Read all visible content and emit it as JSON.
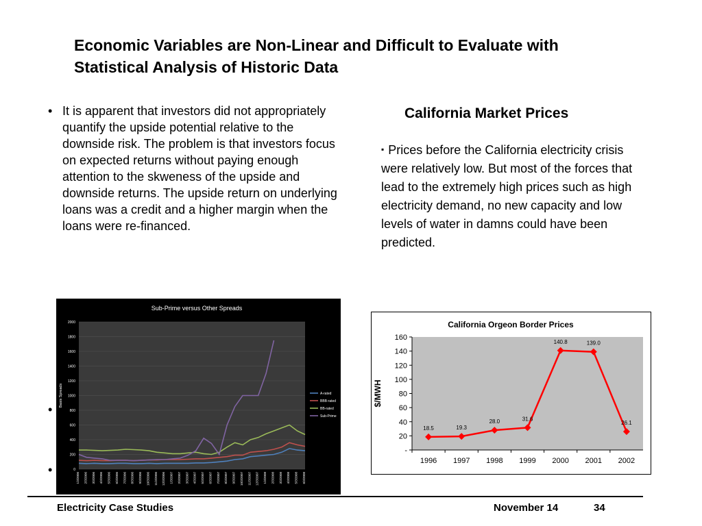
{
  "slide": {
    "title": "Economic Variables are Non-Linear and Difficult to Evaluate with Statistical Analysis of Historic Data",
    "left_bullet_char": "•",
    "left_bullet": "It is apparent that investors did not appropriately quantify the upside potential relative to the downside risk. The problem is that investors focus on expected returns without paying enough attention to the skweness of the upside and downside returns.  The upside return on underlying loans was a credit and a higher margin when the loans were re-financed.",
    "subheading": "California Market Prices",
    "right_bullet_char": "▪",
    "right_bullet": "Prices before the California electricity crisis were relatively low.  But most of the forces that lead to the extremely high prices such as high electricity demand, no new capacity and low levels of water in damns could have been predicted.",
    "footer_left": "Electricity Case Studies",
    "footer_date": "November 14",
    "footer_page": "34"
  },
  "chart_data": [
    {
      "type": "line",
      "title": "Sub-Prime versus Other Spreads",
      "ylabel": "Basis Spreads",
      "xlabel": "",
      "ylim": [
        0,
        2000
      ],
      "yticks": [
        "0",
        "200",
        "400",
        "600",
        "800",
        "1000",
        "1200",
        "1400",
        "1600",
        "1800",
        "2000"
      ],
      "x": [
        "1/3/2006",
        "2/3/2006",
        "3/3/2006",
        "4/3/2006",
        "5/3/2006",
        "6/3/2006",
        "7/3/2006",
        "8/3/2006",
        "9/3/2006",
        "10/3/2006",
        "11/3/2006",
        "12/3/2006",
        "1/3/2007",
        "2/3/2007",
        "3/3/2007",
        "4/3/2007",
        "5/3/2007",
        "6/3/2007",
        "7/3/2007",
        "8/3/2007",
        "9/3/2007",
        "10/3/2007",
        "11/3/2007",
        "12/3/2007",
        "1/3/2008",
        "2/3/2008",
        "3/3/2008",
        "4/3/2008",
        "5/3/2008",
        "6/3/2008"
      ],
      "legend_position": "right",
      "background": "#000000",
      "series": [
        {
          "name": "A-rated",
          "color": "#4f81bd",
          "values": [
            80,
            75,
            80,
            75,
            75,
            80,
            80,
            75,
            75,
            80,
            75,
            80,
            80,
            80,
            80,
            85,
            85,
            90,
            100,
            110,
            130,
            140,
            170,
            180,
            190,
            200,
            230,
            280,
            260,
            250
          ]
        },
        {
          "name": "BBB-rated",
          "color": "#c0504d",
          "values": [
            120,
            115,
            120,
            115,
            115,
            120,
            120,
            115,
            120,
            125,
            125,
            130,
            130,
            130,
            135,
            140,
            140,
            150,
            160,
            170,
            190,
            190,
            230,
            240,
            250,
            270,
            300,
            360,
            330,
            310
          ]
        },
        {
          "name": "BB-rated",
          "color": "#9bbb59",
          "values": [
            260,
            260,
            255,
            250,
            255,
            260,
            270,
            265,
            260,
            250,
            230,
            220,
            210,
            210,
            220,
            230,
            210,
            200,
            230,
            300,
            360,
            330,
            400,
            430,
            480,
            520,
            560,
            600,
            520,
            470
          ]
        },
        {
          "name": "Sub-Prime",
          "color": "#8064a2",
          "values": [
            200,
            160,
            150,
            140,
            120,
            120,
            120,
            115,
            120,
            125,
            130,
            130,
            140,
            150,
            190,
            250,
            420,
            350,
            200,
            600,
            850,
            1000,
            1000,
            1000,
            1300,
            1750,
            null,
            null,
            null,
            null
          ]
        }
      ]
    },
    {
      "type": "line",
      "title": "California Orgeon Border Prices",
      "ylabel": "$/MWH",
      "xlabel": "",
      "ylim": [
        0,
        160
      ],
      "yticks": [
        "-",
        "20",
        "40",
        "60",
        "80",
        "100",
        "120",
        "140",
        "160"
      ],
      "categories": [
        "1996",
        "1997",
        "1998",
        "1999",
        "2000",
        "2001",
        "2002"
      ],
      "grid": false,
      "plot_background": "#c0c0c0",
      "series": [
        {
          "name": "",
          "color": "#ff0000",
          "values": [
            18.5,
            19.3,
            28.0,
            31.6,
            140.8,
            139.0,
            26.1
          ],
          "labels": [
            "18.5",
            "19.3",
            "28.0",
            "31.6",
            "140.8",
            "139.0",
            "26.1"
          ]
        }
      ]
    }
  ]
}
